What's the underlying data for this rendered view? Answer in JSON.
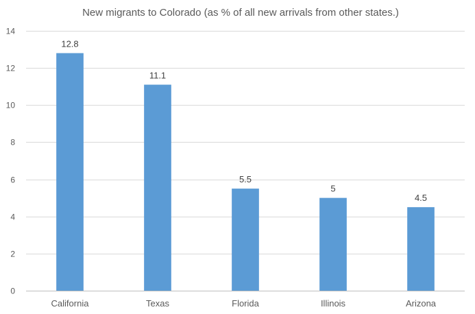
{
  "chart_data": {
    "type": "bar",
    "title": "New migrants to Colorado (as % of all new arrivals from other states.)",
    "categories": [
      "California",
      "Texas",
      "Florida",
      "Illinois",
      "Arizona"
    ],
    "values": [
      12.8,
      11.1,
      5.5,
      5,
      4.5
    ],
    "data_labels": [
      "12.8",
      "11.1",
      "5.5",
      "5",
      "4.5"
    ],
    "ylim": [
      0,
      14
    ],
    "yticks": [
      0,
      2,
      4,
      6,
      8,
      10,
      12,
      14
    ],
    "xlabel": "",
    "ylabel": "",
    "grid": true,
    "legend": "none",
    "bar_color": "#5b9bd5"
  }
}
